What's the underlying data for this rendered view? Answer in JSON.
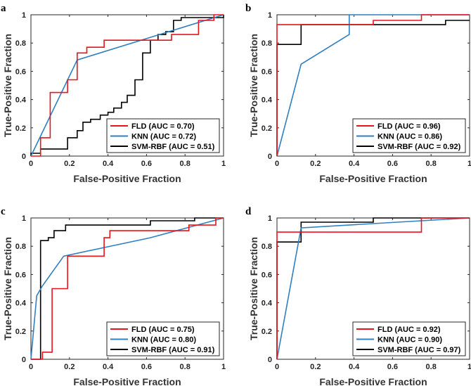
{
  "colors": {
    "FLD": "#e8141b",
    "KNN": "#2f7fc1",
    "SVM-RBF": "#000000"
  },
  "chart_data": [
    {
      "type": "line",
      "panel": "a",
      "xlabel": "False-Positive Fraction",
      "ylabel": "True-Positive Fraction",
      "xlim": [
        0,
        1
      ],
      "ylim": [
        0,
        1
      ],
      "xticks": [
        "0",
        "0.2",
        "0.4",
        "0.6",
        "0.8",
        "1"
      ],
      "yticks": [
        "0",
        "0.2",
        "0.4",
        "0.6",
        "0.8",
        "1"
      ],
      "legend_position": "bottom-right",
      "series": [
        {
          "name": "FLD",
          "legend": "FLD (AUC = 0.70)",
          "x": [
            0,
            0.05,
            0.05,
            0.1,
            0.1,
            0.19,
            0.19,
            0.24,
            0.24,
            0.29,
            0.29,
            0.38,
            0.38,
            0.6,
            0.6,
            0.73,
            0.73,
            0.87,
            0.87,
            0.95,
            0.95,
            1
          ],
          "y": [
            0,
            0,
            0.13,
            0.13,
            0.45,
            0.45,
            0.54,
            0.54,
            0.73,
            0.73,
            0.77,
            0.77,
            0.82,
            0.82,
            0.82,
            0.82,
            0.86,
            0.86,
            0.96,
            0.96,
            1,
            1
          ]
        },
        {
          "name": "KNN",
          "legend": "KNN (AUC = 0.72)",
          "x": [
            0,
            0.24,
            1
          ],
          "y": [
            0,
            0.68,
            1
          ]
        },
        {
          "name": "SVM-RBF",
          "legend": "SVM-RBF (AUC = 0.51)",
          "x": [
            0,
            0,
            0.05,
            0.05,
            0.19,
            0.19,
            0.24,
            0.24,
            0.27,
            0.27,
            0.31,
            0.31,
            0.36,
            0.36,
            0.4,
            0.4,
            0.43,
            0.43,
            0.47,
            0.47,
            0.5,
            0.5,
            0.54,
            0.54,
            0.58,
            0.58,
            0.62,
            0.62,
            0.66,
            0.66,
            0.7,
            0.7,
            0.74,
            0.74,
            0.78,
            0.78,
            1,
            1
          ],
          "y": [
            0,
            0.02,
            0.02,
            0.05,
            0.05,
            0.13,
            0.13,
            0.18,
            0.18,
            0.24,
            0.24,
            0.26,
            0.26,
            0.29,
            0.29,
            0.31,
            0.31,
            0.34,
            0.34,
            0.38,
            0.38,
            0.43,
            0.43,
            0.54,
            0.54,
            0.73,
            0.73,
            0.82,
            0.82,
            0.86,
            0.86,
            0.88,
            0.88,
            0.96,
            0.96,
            0.98,
            0.98,
            1
          ]
        }
      ]
    },
    {
      "type": "line",
      "panel": "b",
      "xlabel": "False-Positive Fraction",
      "ylabel": "True-Positive Fraction",
      "xlim": [
        0,
        1
      ],
      "ylim": [
        0,
        1
      ],
      "xticks": [
        "0",
        "0.2",
        "0.4",
        "0.6",
        "0.8",
        "1"
      ],
      "yticks": [
        "0",
        "0.2",
        "0.4",
        "0.6",
        "0.8",
        "1"
      ],
      "legend_position": "bottom-right",
      "series": [
        {
          "name": "FLD",
          "legend": "FLD (AUC = 0.96)",
          "x": [
            0,
            0,
            0.5,
            0.5,
            0.75,
            0.75,
            1
          ],
          "y": [
            0,
            0.93,
            0.93,
            0.96,
            0.96,
            1,
            1
          ]
        },
        {
          "name": "KNN",
          "legend": "KNN (AUC = 0.86)",
          "x": [
            0,
            0.125,
            0.375,
            0.375,
            1
          ],
          "y": [
            0,
            0.65,
            0.86,
            1,
            1
          ]
        },
        {
          "name": "SVM-RBF",
          "legend": "SVM-RBF (AUC = 0.92)",
          "x": [
            0,
            0,
            0.125,
            0.125,
            0.875,
            0.875,
            1
          ],
          "y": [
            0,
            0.79,
            0.79,
            0.93,
            0.93,
            0.96,
            0.96
          ]
        }
      ]
    },
    {
      "type": "line",
      "panel": "c",
      "xlabel": "False-Positive Fraction",
      "ylabel": "True-Positive Fraction",
      "xlim": [
        0,
        1
      ],
      "ylim": [
        0,
        1
      ],
      "xticks": [
        "0",
        "0.2",
        "0.4",
        "0.6",
        "0.8",
        "1"
      ],
      "yticks": [
        "0",
        "0.2",
        "0.4",
        "0.6",
        "0.8",
        "1"
      ],
      "legend_position": "bottom-right",
      "series": [
        {
          "name": "FLD",
          "legend": "FLD (AUC = 0.75)",
          "x": [
            0,
            0.06,
            0.06,
            0.11,
            0.11,
            0.19,
            0.19,
            0.38,
            0.38,
            0.41,
            0.41,
            0.82,
            0.82,
            0.96,
            0.96,
            1
          ],
          "y": [
            0,
            0,
            0.05,
            0.05,
            0.5,
            0.5,
            0.73,
            0.73,
            0.86,
            0.86,
            0.91,
            0.91,
            0.95,
            0.95,
            1,
            1
          ]
        },
        {
          "name": "KNN",
          "legend": "KNN (AUC = 0.80)",
          "x": [
            0,
            0.03,
            0.06,
            0.17,
            0.62,
            1
          ],
          "y": [
            0,
            0.45,
            0.52,
            0.73,
            0.86,
            1
          ]
        },
        {
          "name": "SVM-RBF",
          "legend": "SVM-RBF (AUC = 0.91)",
          "x": [
            0,
            0.05,
            0.05,
            0.09,
            0.09,
            0.12,
            0.12,
            0.18,
            0.18,
            0.62,
            0.62,
            0.85,
            0.85,
            1
          ],
          "y": [
            0,
            0,
            0.84,
            0.84,
            0.86,
            0.86,
            0.91,
            0.91,
            0.95,
            0.95,
            0.98,
            0.98,
            1,
            1
          ]
        }
      ]
    },
    {
      "type": "line",
      "panel": "d",
      "xlabel": "False-Positive Fraction",
      "ylabel": "True-Positive Fraction",
      "xlim": [
        0,
        1
      ],
      "ylim": [
        0,
        1
      ],
      "xticks": [
        "0",
        "0.2",
        "0.4",
        "0.6",
        "0.8",
        "1"
      ],
      "yticks": [
        "0",
        "0.2",
        "0.4",
        "0.6",
        "0.8",
        "1"
      ],
      "legend_position": "bottom-right",
      "series": [
        {
          "name": "FLD",
          "legend": "FLD (AUC = 0.92)",
          "x": [
            0,
            0,
            0.75,
            0.75,
            1
          ],
          "y": [
            0,
            0.9,
            0.9,
            1,
            1
          ]
        },
        {
          "name": "KNN",
          "legend": "KNN (AUC = 0.90)",
          "x": [
            0,
            0.125,
            0.5,
            1
          ],
          "y": [
            0,
            0.93,
            0.96,
            1
          ]
        },
        {
          "name": "SVM-RBF",
          "legend": "SVM-RBF (AUC = 0.97)",
          "x": [
            0,
            0,
            0.125,
            0.125,
            0.5,
            0.5,
            1
          ],
          "y": [
            0,
            0.83,
            0.83,
            0.97,
            0.97,
            1,
            1
          ]
        }
      ]
    }
  ]
}
